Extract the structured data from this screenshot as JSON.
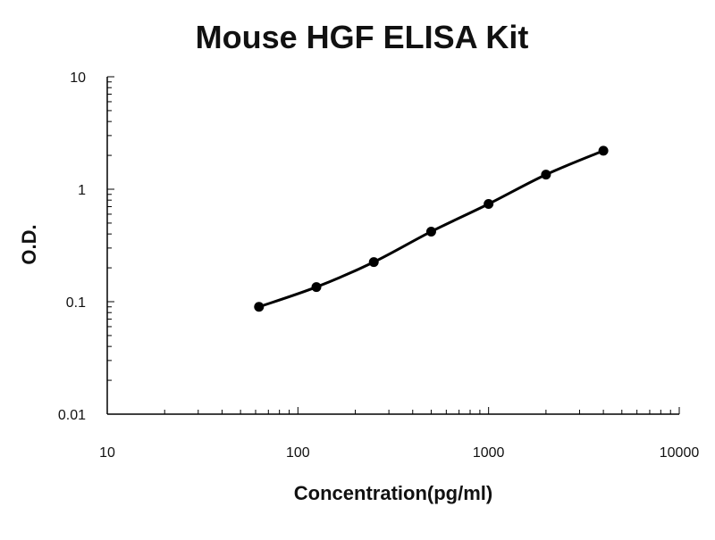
{
  "chart_data": {
    "type": "scatter",
    "title": "Mouse HGF ELISA Kit",
    "xlabel": "Concentration(pg/ml)",
    "ylabel": "O.D.",
    "xscale": "log",
    "yscale": "log",
    "xlim": [
      10,
      10000
    ],
    "ylim": [
      0.01,
      10
    ],
    "x_ticks": [
      "10",
      "100",
      "1000",
      "10000"
    ],
    "y_ticks": [
      "0.01",
      "0.1",
      "1",
      "10"
    ],
    "grid": false,
    "legend": "none",
    "series": [
      {
        "x": [
          62.5,
          125,
          250,
          500,
          1000,
          2000,
          4000
        ],
        "y": [
          0.09,
          0.135,
          0.225,
          0.42,
          0.74,
          1.35,
          2.2
        ],
        "marker": "circle",
        "fit_curve": true
      }
    ],
    "colors": {
      "line": "#000000",
      "points": "#000000",
      "axes": "#000000"
    }
  }
}
